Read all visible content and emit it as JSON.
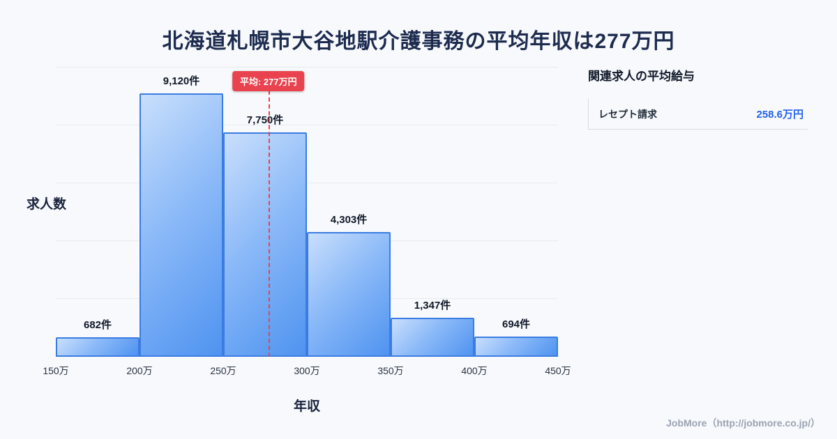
{
  "page": {
    "title": "北海道札幌市大谷地駅介護事務の平均年収は277万円",
    "footer": "JobMore（http://jobmore.co.jp/）"
  },
  "chart_data": {
    "type": "bar",
    "title": "北海道札幌市大谷地駅介護事務の平均年収は277万円",
    "xlabel": "年収",
    "ylabel": "求人数",
    "bin_edges": [
      "150万",
      "200万",
      "250万",
      "300万",
      "350万",
      "400万",
      "450万"
    ],
    "x_min": 150,
    "x_max": 450,
    "values": [
      682,
      9120,
      7750,
      4303,
      1347,
      694
    ],
    "bar_labels": [
      "682件",
      "9,120件",
      "7,750件",
      "4,303件",
      "1,347件",
      "694件"
    ],
    "ylim": [
      0,
      10000
    ],
    "grid": true,
    "grid_step": 2000,
    "legend": "none",
    "average": {
      "value": 277,
      "label": "平均: 277万円"
    },
    "colors": {
      "bar_fill_light": "#c9dffc",
      "bar_fill_dark": "#4f93f0",
      "bar_border": "#3b7ce2",
      "average_line": "#e8434e",
      "title_text": "#1d2b4f",
      "background": "#f7f9fc"
    }
  },
  "sidebar": {
    "heading": "関連求人の平均給与",
    "value_color": "#2563eb",
    "items": [
      {
        "label": "レセプト請求",
        "value": "258.6万円"
      }
    ]
  }
}
